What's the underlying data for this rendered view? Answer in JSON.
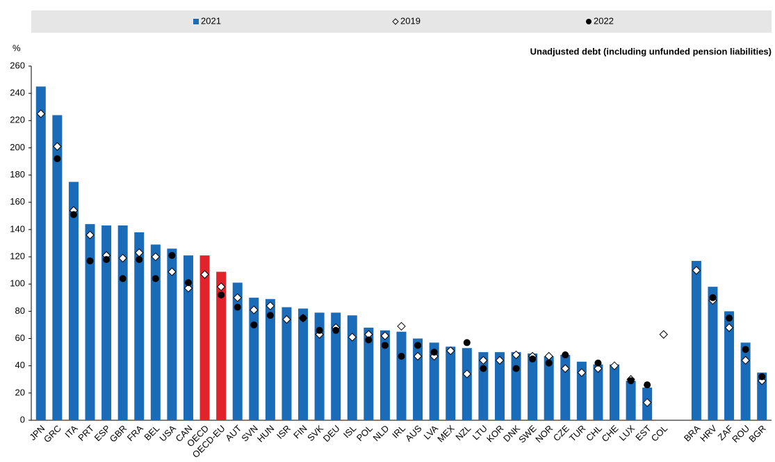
{
  "chart_data": {
    "type": "bar",
    "annotation": "Unadjusted debt (including unfunded pension liabilities)",
    "y_label": "%",
    "categories": [
      "JPN",
      "GRC",
      "ITA",
      "PRT",
      "ESP",
      "GBR",
      "FRA",
      "BEL",
      "USA",
      "CAN",
      "OECD",
      "OECD-EU",
      "AUT",
      "SVN",
      "HUN",
      "ISR",
      "FIN",
      "SVK",
      "DEU",
      "ISL",
      "POL",
      "NLD",
      "IRL",
      "AUS",
      "LVA",
      "MEX",
      "NZL",
      "LTU",
      "KOR",
      "DNK",
      "SWE",
      "NOR",
      "CZE",
      "TUR",
      "CHL",
      "CHE",
      "LUX",
      "EST",
      "COL",
      null,
      "BRA",
      "HRV",
      "ZAF",
      "ROU",
      "BGR"
    ],
    "series": [
      {
        "name": "2021",
        "mark": "bar",
        "color": "#1a6bb8",
        "highlight_color": "#e3232b",
        "highlight_indices": [
          10,
          11
        ],
        "values": [
          245,
          224,
          175,
          144,
          143,
          143,
          138,
          129,
          126,
          121,
          121,
          109,
          101,
          90,
          89,
          83,
          82,
          79,
          79,
          77,
          68,
          66,
          65,
          60,
          57,
          54,
          53,
          50,
          50,
          50,
          49,
          47,
          48,
          43,
          41,
          41,
          29,
          24,
          null,
          null,
          117,
          98,
          80,
          57,
          35
        ]
      },
      {
        "name": "2019",
        "mark": "diamond",
        "color": "#ffffff",
        "values": [
          225,
          201,
          154,
          136,
          121,
          119,
          123,
          120,
          109,
          97,
          107,
          98,
          90,
          81,
          84,
          74,
          75,
          63,
          68,
          61,
          63,
          62,
          69,
          47,
          47,
          51,
          34,
          44,
          44,
          48,
          47,
          47,
          38,
          35,
          38,
          40,
          30,
          13,
          63,
          null,
          110,
          88,
          68,
          44,
          29
        ]
      },
      {
        "name": "2022",
        "mark": "dot",
        "color": "#000000",
        "values": [
          null,
          192,
          151,
          117,
          118,
          104,
          118,
          104,
          121,
          101,
          null,
          92,
          83,
          70,
          77,
          null,
          75,
          66,
          66,
          null,
          59,
          55,
          47,
          55,
          50,
          null,
          57,
          38,
          null,
          38,
          45,
          42,
          48,
          null,
          42,
          null,
          29,
          26,
          null,
          null,
          null,
          90,
          75,
          52,
          32
        ]
      }
    ],
    "ylim": [
      0,
      260
    ],
    "yticks": [
      0,
      20,
      40,
      60,
      80,
      100,
      120,
      140,
      160,
      180,
      200,
      220,
      240,
      260
    ]
  }
}
